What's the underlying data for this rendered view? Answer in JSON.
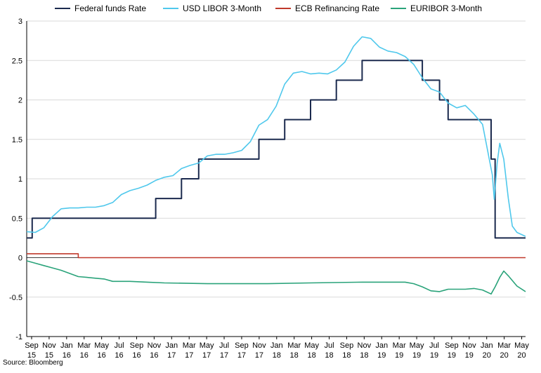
{
  "chart_data": {
    "type": "line",
    "title": "",
    "xlabel": "",
    "ylabel": "",
    "ylim": [
      -1,
      3
    ],
    "yticks": [
      "3",
      "2.5",
      "2",
      "1.5",
      "1",
      "0.5",
      "0",
      "-0.5",
      "-1"
    ],
    "x_range": [
      "2015-09",
      "2020-07"
    ],
    "x_tick_labels": [
      [
        "Sep",
        "15"
      ],
      [
        "Nov",
        "15"
      ],
      [
        "Jan",
        "16"
      ],
      [
        "Mar",
        "16"
      ],
      [
        "May",
        "16"
      ],
      [
        "Jul",
        "16"
      ],
      [
        "Sep",
        "16"
      ],
      [
        "Nov",
        "16"
      ],
      [
        "Jan",
        "17"
      ],
      [
        "Mar",
        "17"
      ],
      [
        "May",
        "17"
      ],
      [
        "Jul",
        "17"
      ],
      [
        "Sep",
        "17"
      ],
      [
        "Nov",
        "17"
      ],
      [
        "Jan",
        "18"
      ],
      [
        "Mar",
        "18"
      ],
      [
        "May",
        "18"
      ],
      [
        "Jul",
        "18"
      ],
      [
        "Sep",
        "18"
      ],
      [
        "Nov",
        "18"
      ],
      [
        "Jan",
        "19"
      ],
      [
        "Mar",
        "19"
      ],
      [
        "May",
        "19"
      ],
      [
        "Jul",
        "19"
      ],
      [
        "Sep",
        "19"
      ],
      [
        "Nov",
        "19"
      ],
      [
        "Jan",
        "20"
      ],
      [
        "Mar",
        "20"
      ],
      [
        "May",
        "20"
      ]
    ],
    "legend_position": "top",
    "grid": "horizontal",
    "source": "Source: Bloomberg",
    "series": [
      {
        "name": "Federal funds Rate",
        "color": "#1b2a4e",
        "step": true,
        "points": [
          [
            "2015-09",
            0.25
          ],
          [
            "2015-09-20",
            0.5
          ],
          [
            "2016-12",
            0.75
          ],
          [
            "2017-03",
            1.0
          ],
          [
            "2017-05",
            1.25
          ],
          [
            "2017-12",
            1.5
          ],
          [
            "2018-03",
            1.75
          ],
          [
            "2018-06",
            2.0
          ],
          [
            "2018-09",
            2.25
          ],
          [
            "2018-12",
            2.5
          ],
          [
            "2019-07",
            2.25
          ],
          [
            "2019-09",
            2.0
          ],
          [
            "2019-10",
            1.75
          ],
          [
            "2020-03-01",
            1.25
          ],
          [
            "2020-03-15",
            0.25
          ],
          [
            "2020-07",
            0.25
          ]
        ]
      },
      {
        "name": "USD LIBOR 3-Month",
        "color": "#4fc8ec",
        "step": false,
        "points": [
          [
            "2015-09",
            0.33
          ],
          [
            "2015-10",
            0.32
          ],
          [
            "2015-11",
            0.38
          ],
          [
            "2015-12",
            0.52
          ],
          [
            "2016-01",
            0.62
          ],
          [
            "2016-02",
            0.63
          ],
          [
            "2016-03",
            0.63
          ],
          [
            "2016-04",
            0.64
          ],
          [
            "2016-05",
            0.64
          ],
          [
            "2016-06",
            0.66
          ],
          [
            "2016-07",
            0.7
          ],
          [
            "2016-08",
            0.8
          ],
          [
            "2016-09",
            0.85
          ],
          [
            "2016-10",
            0.88
          ],
          [
            "2016-11",
            0.92
          ],
          [
            "2016-12",
            0.98
          ],
          [
            "2017-01",
            1.02
          ],
          [
            "2017-02",
            1.04
          ],
          [
            "2017-03",
            1.13
          ],
          [
            "2017-04",
            1.17
          ],
          [
            "2017-05",
            1.2
          ],
          [
            "2017-06",
            1.29
          ],
          [
            "2017-07",
            1.31
          ],
          [
            "2017-08",
            1.31
          ],
          [
            "2017-09",
            1.33
          ],
          [
            "2017-10",
            1.36
          ],
          [
            "2017-11",
            1.47
          ],
          [
            "2017-12",
            1.68
          ],
          [
            "2018-01",
            1.75
          ],
          [
            "2018-02",
            1.92
          ],
          [
            "2018-03",
            2.2
          ],
          [
            "2018-04",
            2.34
          ],
          [
            "2018-05",
            2.36
          ],
          [
            "2018-06",
            2.33
          ],
          [
            "2018-07",
            2.34
          ],
          [
            "2018-08",
            2.33
          ],
          [
            "2018-09",
            2.38
          ],
          [
            "2018-10",
            2.48
          ],
          [
            "2018-11",
            2.68
          ],
          [
            "2018-12",
            2.8
          ],
          [
            "2019-01",
            2.78
          ],
          [
            "2019-02",
            2.67
          ],
          [
            "2019-03",
            2.62
          ],
          [
            "2019-04",
            2.6
          ],
          [
            "2019-05",
            2.55
          ],
          [
            "2019-06",
            2.45
          ],
          [
            "2019-07",
            2.28
          ],
          [
            "2019-08",
            2.14
          ],
          [
            "2019-09",
            2.1
          ],
          [
            "2019-10",
            1.96
          ],
          [
            "2019-11",
            1.9
          ],
          [
            "2019-12",
            1.93
          ],
          [
            "2020-01",
            1.82
          ],
          [
            "2020-02",
            1.69
          ],
          [
            "2020-03-05",
            1.05
          ],
          [
            "2020-03-12",
            0.74
          ],
          [
            "2020-03-22",
            1.2
          ],
          [
            "2020-04-01",
            1.45
          ],
          [
            "2020-04-15",
            1.25
          ],
          [
            "2020-05-01",
            0.75
          ],
          [
            "2020-05-15",
            0.4
          ],
          [
            "2020-06-01",
            0.32
          ],
          [
            "2020-07",
            0.27
          ]
        ]
      },
      {
        "name": "ECB Refinancing Rate",
        "color": "#c0392b",
        "step": true,
        "points": [
          [
            "2015-09",
            0.05
          ],
          [
            "2016-03",
            0.0
          ],
          [
            "2020-07",
            0.0
          ]
        ]
      },
      {
        "name": "EURIBOR 3-Month",
        "color": "#2aa37a",
        "step": false,
        "points": [
          [
            "2015-09",
            -0.04
          ],
          [
            "2015-10",
            -0.07
          ],
          [
            "2015-11",
            -0.1
          ],
          [
            "2015-12",
            -0.13
          ],
          [
            "2016-01",
            -0.16
          ],
          [
            "2016-02",
            -0.2
          ],
          [
            "2016-03",
            -0.24
          ],
          [
            "2016-04",
            -0.25
          ],
          [
            "2016-05",
            -0.26
          ],
          [
            "2016-06",
            -0.27
          ],
          [
            "2016-07",
            -0.3
          ],
          [
            "2016-08",
            -0.3
          ],
          [
            "2016-09",
            -0.3
          ],
          [
            "2016-11",
            -0.31
          ],
          [
            "2017-01",
            -0.32
          ],
          [
            "2017-06",
            -0.33
          ],
          [
            "2018-01",
            -0.33
          ],
          [
            "2018-06",
            -0.32
          ],
          [
            "2018-12",
            -0.31
          ],
          [
            "2019-03",
            -0.31
          ],
          [
            "2019-05",
            -0.31
          ],
          [
            "2019-06",
            -0.33
          ],
          [
            "2019-07",
            -0.37
          ],
          [
            "2019-08",
            -0.42
          ],
          [
            "2019-09",
            -0.43
          ],
          [
            "2019-10",
            -0.4
          ],
          [
            "2019-11",
            -0.4
          ],
          [
            "2019-12",
            -0.4
          ],
          [
            "2020-01",
            -0.39
          ],
          [
            "2020-02",
            -0.41
          ],
          [
            "2020-03-01",
            -0.46
          ],
          [
            "2020-03-15",
            -0.37
          ],
          [
            "2020-04-01",
            -0.25
          ],
          [
            "2020-04-15",
            -0.17
          ],
          [
            "2020-05-01",
            -0.23
          ],
          [
            "2020-06-01",
            -0.36
          ],
          [
            "2020-07",
            -0.43
          ]
        ]
      }
    ]
  }
}
